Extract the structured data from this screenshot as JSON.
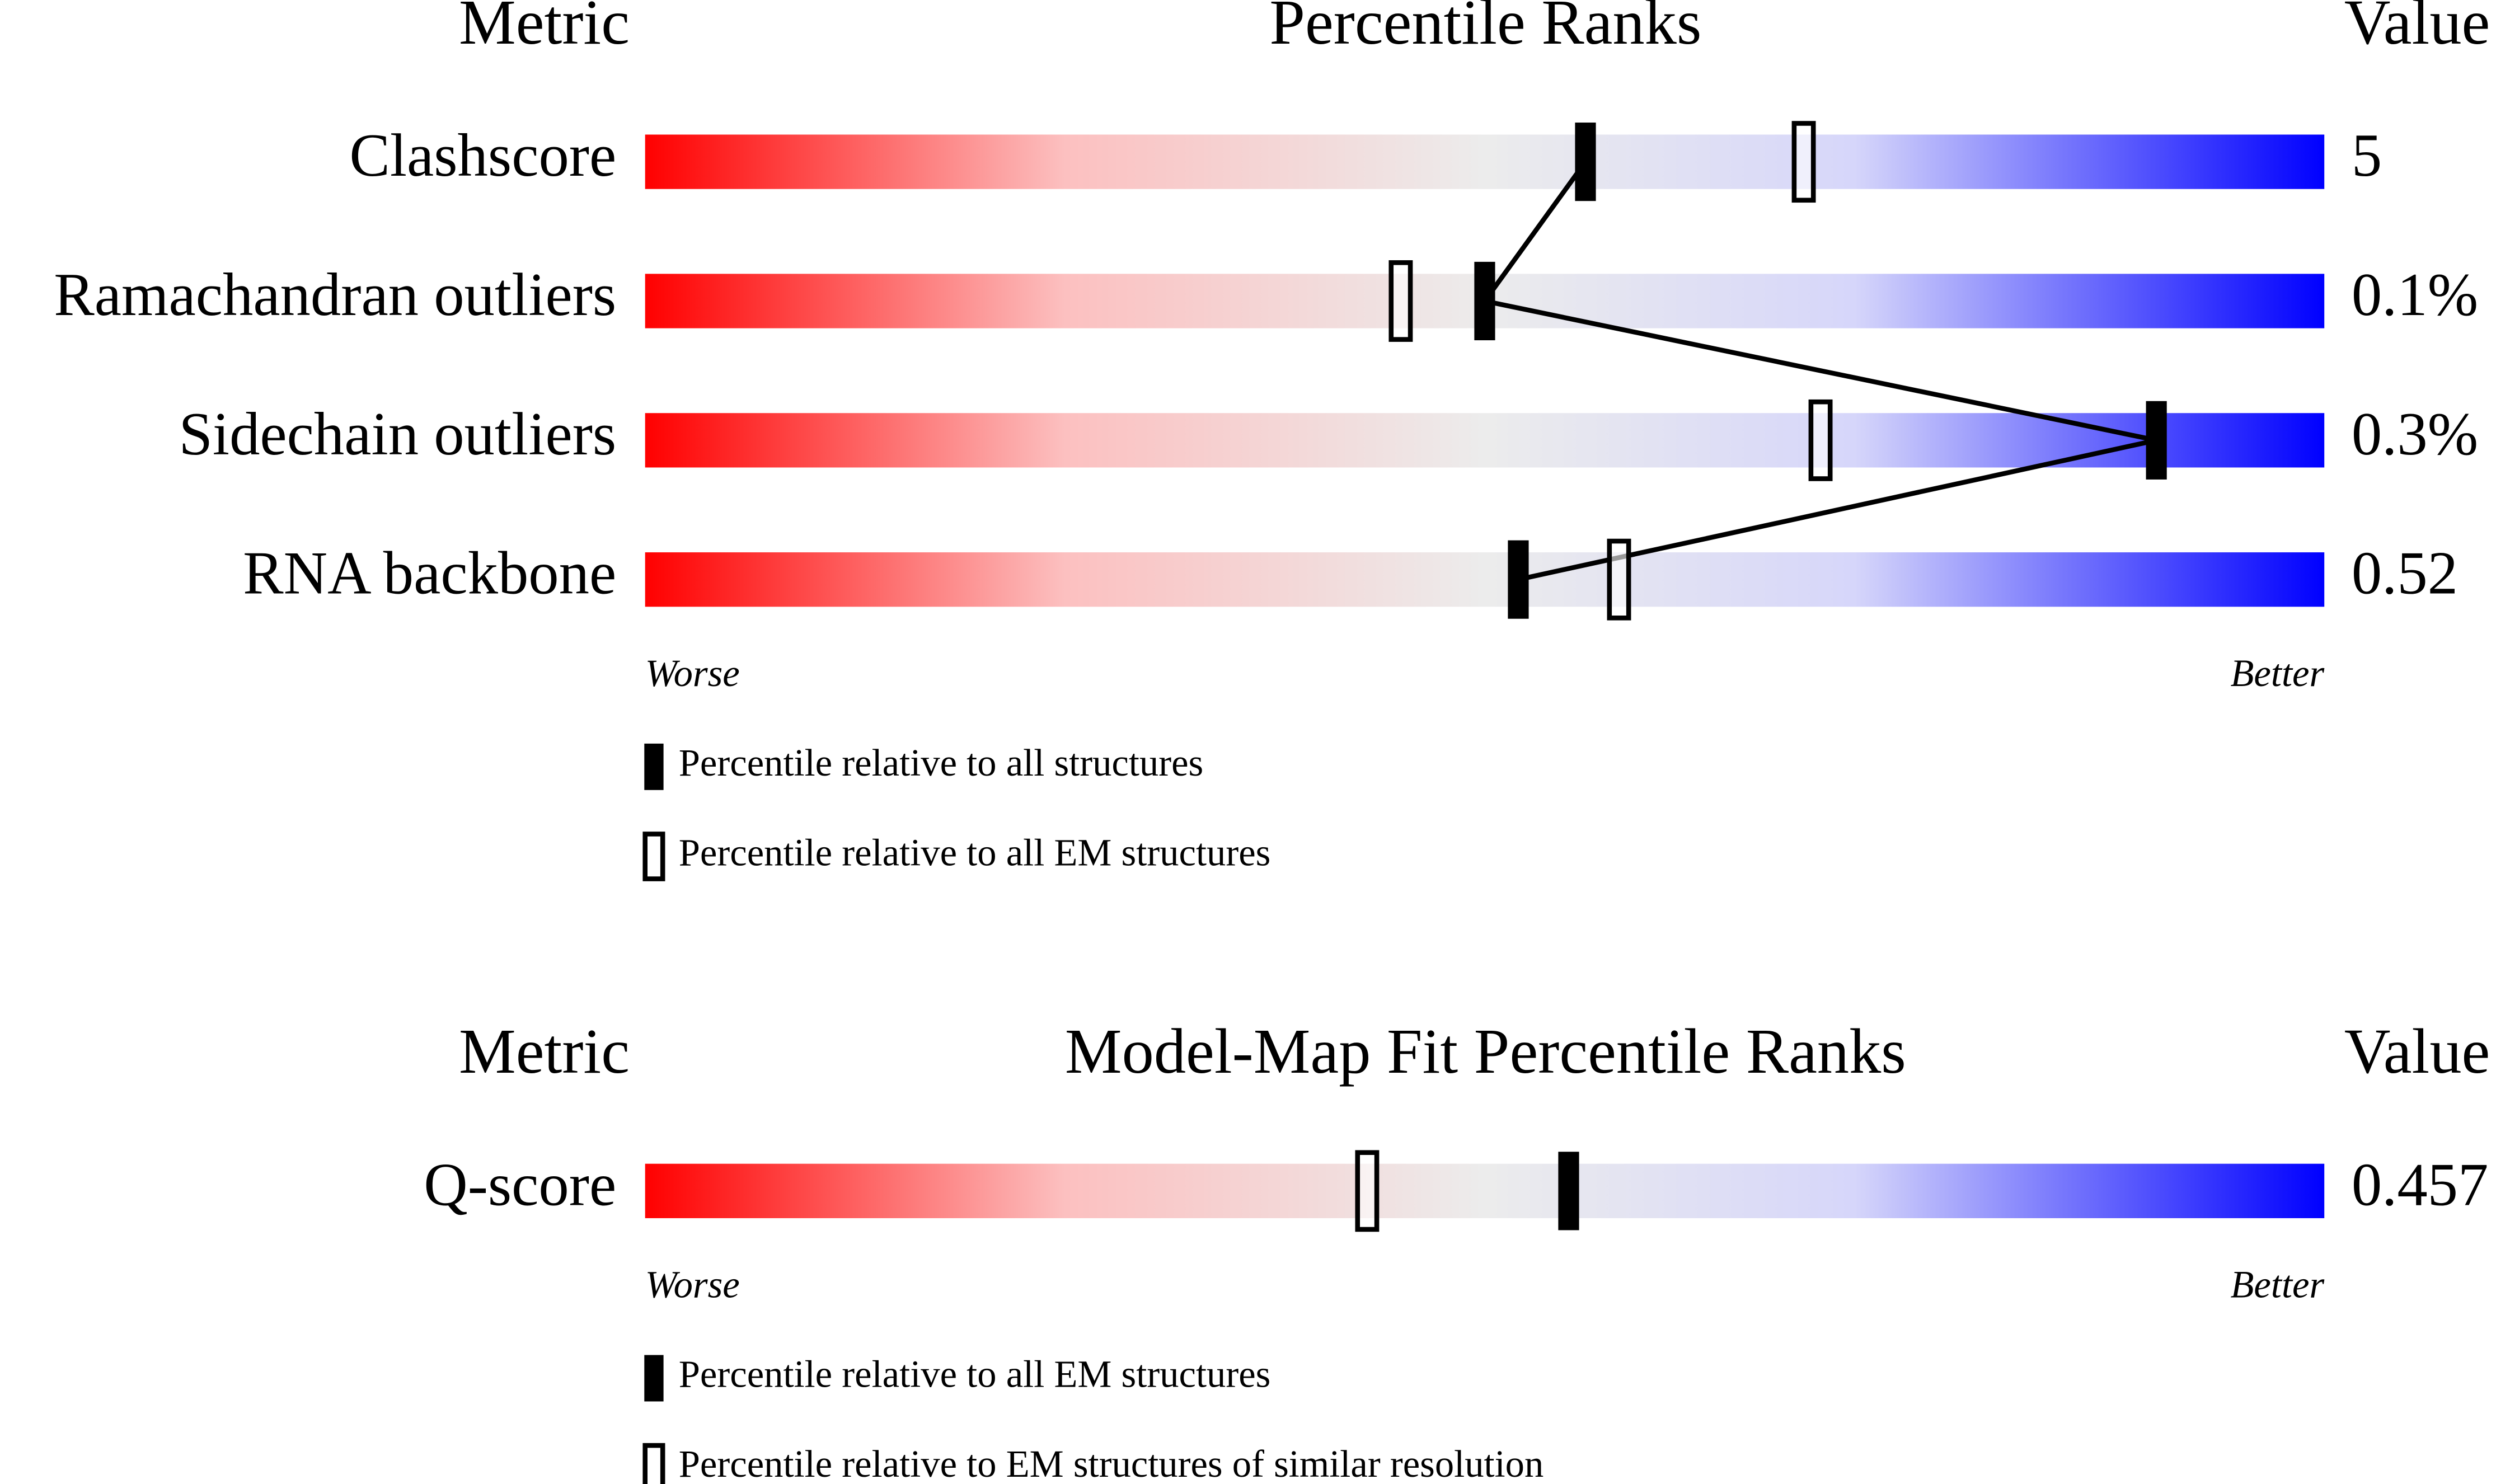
{
  "chart_data": [
    {
      "type": "percentile-slider",
      "headers": {
        "left": "Metric",
        "center": "Percentile Ranks",
        "right": "Value"
      },
      "categories": [
        "Clashscore",
        "Ramachandran outliers",
        "Sidechain outliers",
        "RNA backbone"
      ],
      "metric_values": [
        "5",
        "0.1%",
        "0.3%",
        "0.52"
      ],
      "series": [
        {
          "name": "Percentile relative to all structures",
          "style": "filled",
          "connected": true,
          "values": [
            56,
            50,
            90,
            52
          ]
        },
        {
          "name": "Percentile relative to all EM structures",
          "style": "open",
          "connected": false,
          "values": [
            69,
            45,
            70,
            58
          ]
        }
      ],
      "xlim": [
        0,
        100
      ],
      "scale_labels": [
        "Worse",
        "Better"
      ]
    },
    {
      "type": "percentile-slider",
      "headers": {
        "left": "Metric",
        "center": "Model-Map Fit Percentile Ranks",
        "right": "Value"
      },
      "categories": [
        "Q-score"
      ],
      "metric_values": [
        "0.457"
      ],
      "series": [
        {
          "name": "Percentile relative to all EM structures",
          "style": "filled",
          "connected": false,
          "values": [
            55
          ]
        },
        {
          "name": "Percentile relative to EM structures of similar resolution",
          "style": "open",
          "connected": false,
          "values": [
            43
          ]
        }
      ],
      "xlim": [
        0,
        100
      ],
      "scale_labels": [
        "Worse",
        "Better"
      ]
    }
  ]
}
